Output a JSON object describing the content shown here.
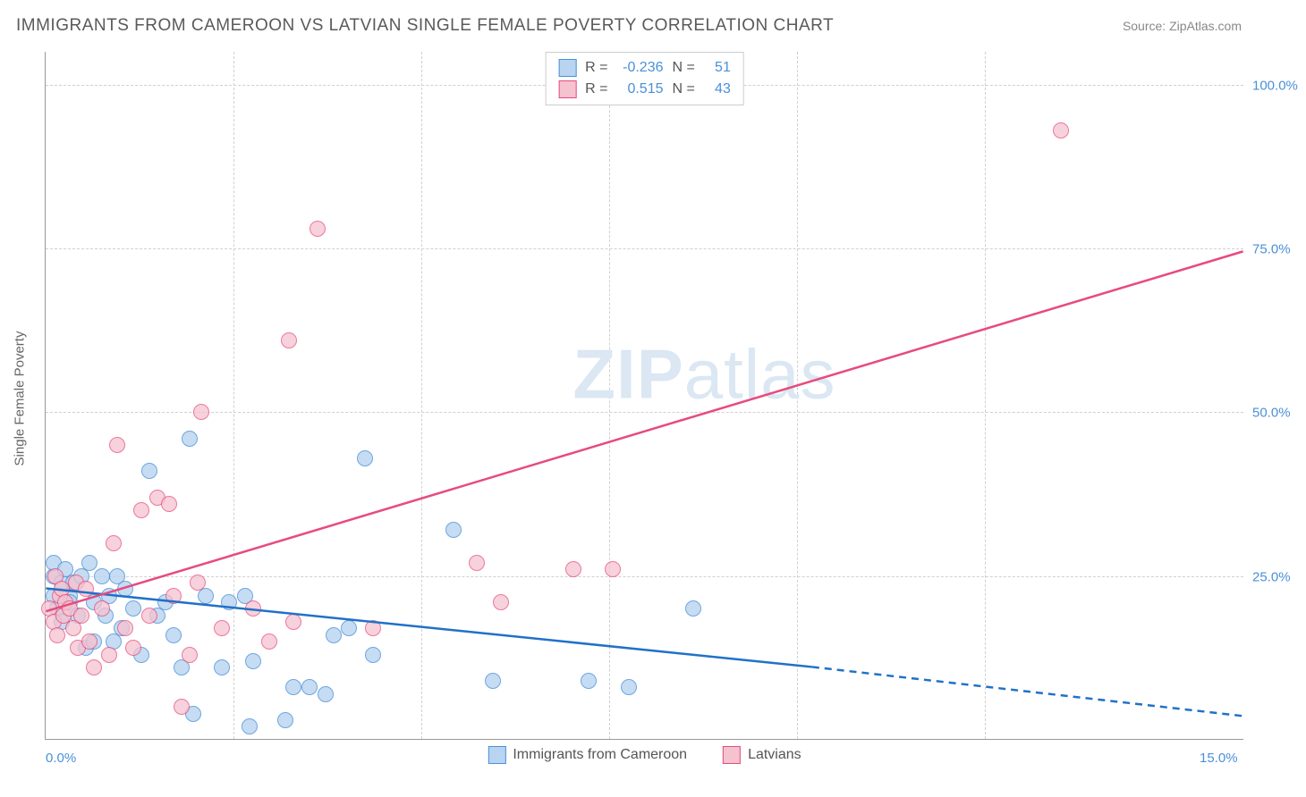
{
  "header": {
    "title": "IMMIGRANTS FROM CAMEROON VS LATVIAN SINGLE FEMALE POVERTY CORRELATION CHART",
    "source": "Source: ZipAtlas.com"
  },
  "chart": {
    "type": "scatter",
    "y_axis_title": "Single Female Poverty",
    "background_color": "#ffffff",
    "grid_color": "#d0d0d0",
    "axis_color": "#999999",
    "tick_label_color": "#4a90d9",
    "xlim": [
      0,
      15
    ],
    "ylim": [
      0,
      105
    ],
    "x_ticks": [
      {
        "v": 0,
        "label": "0.0%"
      },
      {
        "v": 15,
        "label": "15.0%"
      }
    ],
    "x_grid_vals": [
      2.35,
      4.7,
      7.05,
      9.4,
      11.75
    ],
    "y_ticks": [
      {
        "v": 25,
        "label": "25.0%"
      },
      {
        "v": 50,
        "label": "50.0%"
      },
      {
        "v": 75,
        "label": "75.0%"
      },
      {
        "v": 100,
        "label": "100.0%"
      }
    ],
    "watermark": {
      "zip": "ZIP",
      "atlas": "atlas"
    },
    "series": [
      {
        "key": "cameroon",
        "label": "Immigrants from Cameroon",
        "fill": "#b8d4f0",
        "stroke": "#4a90d9",
        "fill_opacity": 0.55,
        "r_label": "R =",
        "r_value": "-0.236",
        "n_label": "N =",
        "n_value": "51",
        "trend": {
          "solid": {
            "x1": 0,
            "y1": 23,
            "x2": 9.6,
            "y2": 11
          },
          "dashed": {
            "x1": 9.6,
            "y1": 11,
            "x2": 15,
            "y2": 3.5
          },
          "color": "#2171c7",
          "width": 2.5
        },
        "points": [
          [
            0.1,
            25
          ],
          [
            0.1,
            22
          ],
          [
            0.1,
            27
          ],
          [
            0.15,
            20
          ],
          [
            0.2,
            24
          ],
          [
            0.2,
            18
          ],
          [
            0.25,
            26
          ],
          [
            0.3,
            22
          ],
          [
            0.3,
            21
          ],
          [
            0.35,
            24
          ],
          [
            0.4,
            19
          ],
          [
            0.45,
            25
          ],
          [
            0.5,
            14
          ],
          [
            0.55,
            27
          ],
          [
            0.6,
            21
          ],
          [
            0.6,
            15
          ],
          [
            0.7,
            25
          ],
          [
            0.75,
            19
          ],
          [
            0.8,
            22
          ],
          [
            0.85,
            15
          ],
          [
            0.9,
            25
          ],
          [
            0.95,
            17
          ],
          [
            1.0,
            23
          ],
          [
            1.1,
            20
          ],
          [
            1.2,
            13
          ],
          [
            1.3,
            41
          ],
          [
            1.4,
            19
          ],
          [
            1.5,
            21
          ],
          [
            1.6,
            16
          ],
          [
            1.7,
            11
          ],
          [
            1.8,
            46
          ],
          [
            1.85,
            4
          ],
          [
            2.0,
            22
          ],
          [
            2.2,
            11
          ],
          [
            2.3,
            21
          ],
          [
            2.5,
            22
          ],
          [
            2.55,
            2
          ],
          [
            2.6,
            12
          ],
          [
            3.0,
            3
          ],
          [
            3.1,
            8
          ],
          [
            3.3,
            8
          ],
          [
            3.5,
            7
          ],
          [
            3.6,
            16
          ],
          [
            3.8,
            17
          ],
          [
            4.0,
            43
          ],
          [
            4.1,
            13
          ],
          [
            5.1,
            32
          ],
          [
            5.6,
            9
          ],
          [
            6.8,
            9
          ],
          [
            7.3,
            8
          ],
          [
            8.1,
            20
          ]
        ]
      },
      {
        "key": "latvians",
        "label": "Latvians",
        "fill": "#f5c2cf",
        "stroke": "#e74b7c",
        "fill_opacity": 0.5,
        "r_label": "R =",
        "r_value": "0.515",
        "n_label": "N =",
        "n_value": "43",
        "trend": {
          "solid": {
            "x1": 0,
            "y1": 19.5,
            "x2": 15,
            "y2": 74.5
          },
          "dashed": null,
          "color": "#e74b7c",
          "width": 2.5
        },
        "points": [
          [
            0.05,
            20
          ],
          [
            0.1,
            18
          ],
          [
            0.12,
            25
          ],
          [
            0.15,
            16
          ],
          [
            0.18,
            22
          ],
          [
            0.2,
            23
          ],
          [
            0.22,
            19
          ],
          [
            0.25,
            21
          ],
          [
            0.3,
            20
          ],
          [
            0.35,
            17
          ],
          [
            0.38,
            24
          ],
          [
            0.4,
            14
          ],
          [
            0.45,
            19
          ],
          [
            0.5,
            23
          ],
          [
            0.55,
            15
          ],
          [
            0.6,
            11
          ],
          [
            0.7,
            20
          ],
          [
            0.8,
            13
          ],
          [
            0.85,
            30
          ],
          [
            0.9,
            45
          ],
          [
            1.0,
            17
          ],
          [
            1.1,
            14
          ],
          [
            1.2,
            35
          ],
          [
            1.3,
            19
          ],
          [
            1.4,
            37
          ],
          [
            1.55,
            36
          ],
          [
            1.6,
            22
          ],
          [
            1.7,
            5
          ],
          [
            1.8,
            13
          ],
          [
            1.9,
            24
          ],
          [
            1.95,
            50
          ],
          [
            2.2,
            17
          ],
          [
            2.6,
            20
          ],
          [
            2.8,
            15
          ],
          [
            3.05,
            61
          ],
          [
            3.1,
            18
          ],
          [
            3.4,
            78
          ],
          [
            4.1,
            17
          ],
          [
            5.4,
            27
          ],
          [
            5.7,
            21
          ],
          [
            6.6,
            26
          ],
          [
            7.1,
            26
          ],
          [
            12.7,
            93
          ]
        ]
      }
    ]
  }
}
